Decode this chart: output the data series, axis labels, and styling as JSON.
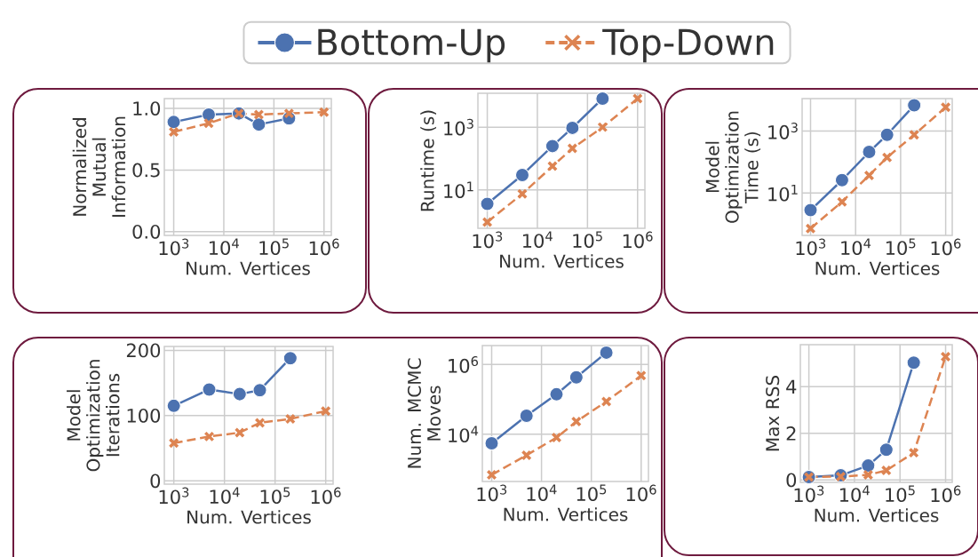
{
  "chart_data": [
    {
      "type": "line",
      "log": "x",
      "grid": true,
      "legend": "top",
      "xlabel": "Num. Vertices",
      "ylabel": "Normalized Mutual Information",
      "x": [
        1000,
        5000,
        20000,
        50000,
        200000,
        1000000
      ],
      "xlim": [
        650,
        1400000
      ],
      "xticks": [
        {
          "value": 1000,
          "label": "10$^{3}$"
        },
        {
          "value": 10000,
          "label": "10$^{4}$"
        },
        {
          "value": 100000,
          "label": "10$^{5}$"
        },
        {
          "value": 1000000,
          "label": "10$^{6}$"
        }
      ],
      "ylim": [
        -0.03,
        1.08
      ],
      "yticks": [
        {
          "value": 0,
          "label": "0.0"
        },
        {
          "value": 0.5,
          "label": "0.5"
        },
        {
          "value": 1,
          "label": "1.0"
        }
      ],
      "series": [
        {
          "name": "Bottom-Up",
          "color": "#4c72b0",
          "marker": "circle",
          "line_style": "solid",
          "values": [
            0.89,
            0.95,
            0.96,
            0.87,
            0.92,
            null
          ]
        },
        {
          "name": "Top-Down",
          "color": "#dd8452",
          "marker": "cross",
          "line_style": "dashed",
          "values": [
            0.81,
            0.88,
            0.96,
            0.95,
            0.96,
            0.97
          ]
        }
      ]
    },
    {
      "type": "line",
      "log": "xy",
      "grid": true,
      "xlabel": "Num. Vertices",
      "ylabel": "Runtime (s)",
      "x": [
        1000,
        5000,
        20000,
        50000,
        200000,
        1000000
      ],
      "xlim": [
        650,
        1400000
      ],
      "xticks": [
        {
          "value": 1000,
          "label": "10$^{3}$"
        },
        {
          "value": 10000,
          "label": "10$^{4}$"
        },
        {
          "value": 100000,
          "label": "10$^{5}$"
        },
        {
          "value": 1000000,
          "label": "10$^{6}$"
        }
      ],
      "ylim": [
        0.6,
        12000
      ],
      "yticks": [
        {
          "value": 10,
          "label": "10$^{1}$"
        },
        {
          "value": 1000,
          "label": "10$^{3}$"
        }
      ],
      "series": [
        {
          "color": "#4c72b0",
          "marker": "circle",
          "line_style": "solid",
          "values": [
            3.6,
            30,
            250,
            950,
            8100,
            null
          ]
        },
        {
          "color": "#dd8452",
          "marker": "cross",
          "line_style": "dashed",
          "values": [
            0.95,
            7.5,
            57,
            210,
            1000,
            8100
          ]
        }
      ]
    },
    {
      "type": "line",
      "log": "xy",
      "grid": true,
      "xlabel": "Num. Vertices",
      "ylabel": "Model Optimization Time (s)",
      "x": [
        1000,
        5000,
        20000,
        50000,
        200000,
        1000000
      ],
      "xlim": [
        650,
        1400000
      ],
      "xticks": [
        {
          "value": 1000,
          "label": "10$^{3}$"
        },
        {
          "value": 10000,
          "label": "10$^{4}$"
        },
        {
          "value": 100000,
          "label": "10$^{5}$"
        },
        {
          "value": 1000000,
          "label": "10$^{6}$"
        }
      ],
      "ylim": [
        0.43,
        11000
      ],
      "yticks": [
        {
          "value": 10,
          "label": "10$^{1}$"
        },
        {
          "value": 1000,
          "label": "10$^{3}$"
        }
      ],
      "series": [
        {
          "color": "#4c72b0",
          "marker": "circle",
          "line_style": "solid",
          "values": [
            2.8,
            26,
            210,
            750,
            6700,
            null
          ]
        },
        {
          "color": "#dd8452",
          "marker": "cross",
          "line_style": "dashed",
          "values": [
            0.72,
            5.2,
            37,
            140,
            750,
            5800
          ]
        }
      ]
    },
    {
      "type": "line",
      "log": "x",
      "grid": true,
      "xlabel": "Num. Vertices",
      "ylabel": "Model Optimization Iterations",
      "x": [
        1000,
        5000,
        20000,
        50000,
        200000,
        1000000
      ],
      "xlim": [
        650,
        1400000
      ],
      "xticks": [
        {
          "value": 1000,
          "label": "10$^{3}$"
        },
        {
          "value": 10000,
          "label": "10$^{4}$"
        },
        {
          "value": 100000,
          "label": "10$^{5}$"
        },
        {
          "value": 1000000,
          "label": "10$^{6}$"
        }
      ],
      "ylim": [
        -5,
        206
      ],
      "yticks": [
        0,
        100,
        200
      ],
      "series": [
        {
          "color": "#4c72b0",
          "marker": "circle",
          "line_style": "solid",
          "values": [
            115,
            140,
            133,
            139,
            188,
            null
          ]
        },
        {
          "color": "#dd8452",
          "marker": "cross",
          "line_style": "dashed",
          "values": [
            58,
            68,
            74,
            89,
            95,
            107
          ]
        }
      ]
    },
    {
      "type": "line",
      "log": "xy",
      "grid": true,
      "xlabel": "Num. Vertices",
      "ylabel": "Num. MCMC Moves",
      "x": [
        1000,
        5000,
        20000,
        50000,
        200000,
        1000000
      ],
      "xlim": [
        650,
        1400000
      ],
      "xticks": [
        {
          "value": 1000,
          "label": "10$^{3}$"
        },
        {
          "value": 10000,
          "label": "10$^{4}$"
        },
        {
          "value": 100000,
          "label": "10$^{5}$"
        },
        {
          "value": 1000000,
          "label": "10$^{6}$"
        }
      ],
      "ylim": [
        440,
        3500000
      ],
      "yticks": [
        {
          "value": 10000,
          "label": "10$^{4}$"
        },
        {
          "value": 1000000,
          "label": "10$^{6}$"
        }
      ],
      "series": [
        {
          "color": "#4c72b0",
          "marker": "circle",
          "line_style": "solid",
          "values": [
            5500,
            34000,
            140000,
            430000,
            2200000,
            null
          ]
        },
        {
          "color": "#dd8452",
          "marker": "cross",
          "line_style": "dashed",
          "values": [
            680,
            2500,
            8000,
            23000,
            87000,
            480000
          ]
        }
      ]
    },
    {
      "type": "line",
      "log": "x",
      "grid": true,
      "xlabel": "Num. Vertices",
      "ylabel": "Max RSS",
      "x": [
        1000,
        5000,
        20000,
        50000,
        200000,
        1000000
      ],
      "xlim": [
        650,
        1400000
      ],
      "xticks": [
        {
          "value": 1000,
          "label": "10$^{3}$"
        },
        {
          "value": 10000,
          "label": "10$^{4}$"
        },
        {
          "value": 100000,
          "label": "10$^{5}$"
        },
        {
          "value": 1000000,
          "label": "10$^{6}$"
        }
      ],
      "ylim": [
        -0.1,
        5.8
      ],
      "yticks": [
        0,
        2,
        4
      ],
      "series": [
        {
          "color": "#4c72b0",
          "marker": "circle",
          "line_style": "solid",
          "values": [
            0.13,
            0.2,
            0.62,
            1.3,
            5.03,
            null
          ]
        },
        {
          "color": "#dd8452",
          "marker": "cross",
          "line_style": "dashed",
          "values": [
            0.13,
            0.15,
            0.22,
            0.41,
            1.17,
            5.29
          ]
        }
      ]
    }
  ]
}
